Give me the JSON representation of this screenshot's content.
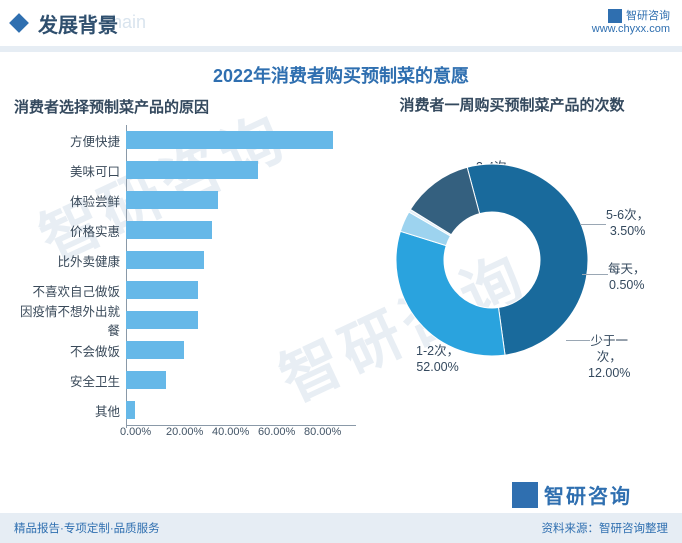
{
  "header": {
    "title": "发展背景",
    "ghost": "l Chain",
    "brand_name": "智研咨询",
    "brand_url": "www.chyxx.com"
  },
  "main_title": "2022年消费者购买预制菜的意愿",
  "bar_chart": {
    "type": "bar-horizontal",
    "title": "消费者选择预制菜产品的原因",
    "categories": [
      "方便快捷",
      "美味可口",
      "体验尝鲜",
      "价格实惠",
      "比外卖健康",
      "不喜欢自己做饭",
      "因疫情不想外出就餐",
      "不会做饭",
      "安全卫生",
      "其他"
    ],
    "values": [
      72,
      46,
      32,
      30,
      27,
      25,
      25,
      20,
      14,
      3
    ],
    "xmax": 80,
    "xtick_step": 20,
    "xtick_labels": [
      "0.00%",
      "20.00%",
      "40.00%",
      "60.00%",
      "80.00%"
    ],
    "bar_color": "#66b8e8",
    "axis_color": "#8a99a8",
    "label_fontsize": 12.5,
    "tick_fontsize": 11
  },
  "donut_chart": {
    "type": "donut",
    "title": "消费者一周购买预制菜产品的次数",
    "slices": [
      {
        "label": "1-2次",
        "value": 52.0,
        "display": "1-2次，\n52.00%",
        "color": "#196a9c"
      },
      {
        "label": "3-4次",
        "value": 32.0,
        "display": "3-4次，\n32.00%",
        "color": "#2aa3de"
      },
      {
        "label": "5-6次",
        "value": 3.5,
        "display": "5-6次，\n3.50%",
        "color": "#9dd3ef"
      },
      {
        "label": "每天",
        "value": 0.5,
        "display": "每天，\n0.50%",
        "color": "#e3eff8"
      },
      {
        "label": "少于一次",
        "value": 12.0,
        "display": "少于一\n次，\n12.00%",
        "color": "#34607f"
      }
    ],
    "inner_radius": 48,
    "outer_radius": 96,
    "start_angle_deg": -105,
    "background": "#ffffff",
    "label_fontsize": 12.5
  },
  "footer": {
    "left": "精品报告·专项定制·品质服务",
    "right": "资料来源：智研咨询整理",
    "logo_text": "智研咨询"
  },
  "watermark_text": "智研咨询"
}
